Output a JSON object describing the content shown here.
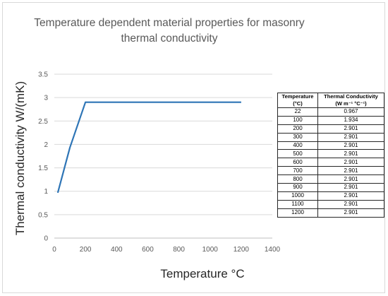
{
  "chart_data": {
    "type": "line",
    "title": "Temperature dependent material properties for masonry thermal conductivity",
    "xlabel": "Temperature °C",
    "ylabel": "Thermal conductivity W/(mK)",
    "xlim": [
      0,
      1400
    ],
    "ylim": [
      0,
      3.5
    ],
    "xticks": [
      "0",
      "200",
      "400",
      "600",
      "800",
      "1000",
      "1200",
      "1400"
    ],
    "yticks": [
      "0",
      "0.5",
      "1",
      "1.5",
      "2",
      "2.5",
      "3",
      "3.5"
    ],
    "grid": "horizontal",
    "legend": "none",
    "line_color": "#2e75b6",
    "series": [
      {
        "x": [
          22,
          100,
          200,
          300,
          400,
          500,
          600,
          700,
          800,
          900,
          1000,
          1100,
          1200
        ],
        "y": [
          0.967,
          1.934,
          2.901,
          2.901,
          2.901,
          2.901,
          2.901,
          2.901,
          2.901,
          2.901,
          2.901,
          2.901,
          2.901
        ]
      }
    ]
  },
  "table": {
    "headers": [
      [
        "Temperature",
        "(°C)"
      ],
      [
        "Thermal Conductivity",
        "(W m⁻¹ °C⁻¹)"
      ]
    ],
    "rows": [
      [
        "22",
        "0.967"
      ],
      [
        "100",
        "1.934"
      ],
      [
        "200",
        "2.901"
      ],
      [
        "300",
        "2.901"
      ],
      [
        "400",
        "2.901"
      ],
      [
        "500",
        "2.901"
      ],
      [
        "600",
        "2.901"
      ],
      [
        "700",
        "2.901"
      ],
      [
        "800",
        "2.901"
      ],
      [
        "900",
        "2.901"
      ],
      [
        "1000",
        "2.901"
      ],
      [
        "1100",
        "2.901"
      ],
      [
        "1200",
        "2.901"
      ]
    ]
  }
}
